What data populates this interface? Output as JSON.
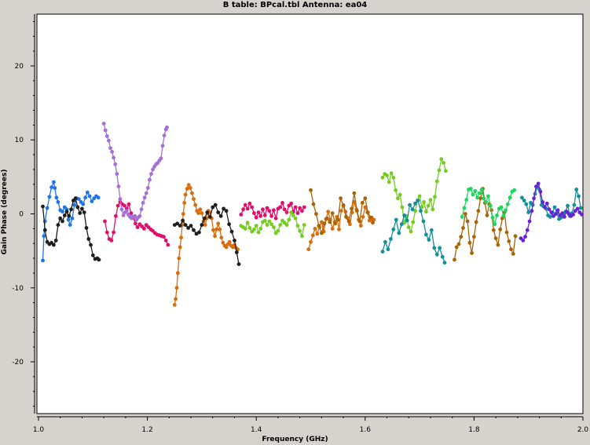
{
  "chart_data": {
    "type": "scatter",
    "title": "B table: BPcal.tbl   Antenna: ea04",
    "xlabel": "Frequency (GHz)",
    "ylabel": "Gain Phase (degrees)",
    "xlim": [
      1.0,
      2.0
    ],
    "ylim": [
      -27,
      27
    ],
    "xticks": [
      1.0,
      1.2,
      1.4,
      1.6,
      1.8,
      2.0
    ],
    "xtick_labels": [
      "1.0",
      "1.2",
      "1.4",
      "1.6",
      "1.8",
      "2.0"
    ],
    "yticks": [
      -20,
      -10,
      0,
      10,
      20
    ],
    "ytick_labels": [
      "-20",
      "-10",
      "0",
      "10",
      "20"
    ],
    "grid": false,
    "legend": "none",
    "series": [
      {
        "color": "#1f74e8",
        "marker": "line-dots",
        "x": [
          1.008,
          1.01,
          1.012,
          1.016,
          1.02,
          1.024,
          1.028,
          1.03,
          1.033,
          1.036,
          1.04,
          1.044,
          1.048,
          1.052,
          1.055,
          1.058,
          1.062,
          1.066,
          1.07,
          1.074,
          1.078,
          1.082,
          1.086,
          1.09,
          1.094,
          1.098,
          1.102,
          1.106,
          1.11
        ],
        "y": [
          -6.3,
          -3.0,
          -1.0,
          0.8,
          2.3,
          3.6,
          4.3,
          3.5,
          2.2,
          1.6,
          0.5,
          0.3,
          0.9,
          0.6,
          -0.8,
          -1.5,
          -0.6,
          1.2,
          2.1,
          2.0,
          1.6,
          1.3,
          2.2,
          2.9,
          2.4,
          1.7,
          2.1,
          2.4,
          2.2
        ]
      },
      {
        "color": "#1e1e1e",
        "marker": "line-dots",
        "x": [
          1.008,
          1.012,
          1.016,
          1.02,
          1.024,
          1.028,
          1.032,
          1.036,
          1.04,
          1.044,
          1.048,
          1.052,
          1.056,
          1.06,
          1.064,
          1.068,
          1.072,
          1.076,
          1.08,
          1.084,
          1.088,
          1.092,
          1.096,
          1.1,
          1.104,
          1.108,
          1.111
        ],
        "y": [
          1.0,
          -2.2,
          -3.8,
          -4.1,
          -3.9,
          -4.2,
          -3.6,
          -1.5,
          -0.6,
          -1.0,
          -0.2,
          0.3,
          -0.3,
          0.6,
          1.8,
          2.1,
          0.9,
          0.1,
          0.7,
          0.2,
          -1.9,
          -3.4,
          -4.2,
          -5.6,
          -6.1,
          -6.0,
          -6.2
        ]
      },
      {
        "color": "#e0106a",
        "marker": "line-dots",
        "x": [
          1.122,
          1.126,
          1.13,
          1.134,
          1.138,
          1.142,
          1.146,
          1.15,
          1.154,
          1.158,
          1.162,
          1.166,
          1.17,
          1.174,
          1.178,
          1.182,
          1.186,
          1.19,
          1.194,
          1.198,
          1.202,
          1.206,
          1.21,
          1.214,
          1.218,
          1.222,
          1.226,
          1.23,
          1.234,
          1.238
        ],
        "y": [
          -1.0,
          -2.5,
          -3.4,
          -3.6,
          -2.5,
          -0.3,
          1.1,
          1.6,
          1.3,
          1.1,
          0.7,
          1.3,
          0.1,
          -0.5,
          -1.3,
          -1.8,
          -1.4,
          -1.7,
          -2.0,
          -1.5,
          -1.8,
          -2.1,
          -2.3,
          -2.6,
          -2.8,
          -2.9,
          -3.0,
          -3.1,
          -3.6,
          -4.2
        ]
      },
      {
        "color": "#a66ed8",
        "marker": "line-dots",
        "x": [
          1.12,
          1.123,
          1.126,
          1.129,
          1.132,
          1.135,
          1.138,
          1.141,
          1.144,
          1.147,
          1.15,
          1.153,
          1.156,
          1.159,
          1.162,
          1.165,
          1.168,
          1.171,
          1.174,
          1.177,
          1.18,
          1.183,
          1.186,
          1.189,
          1.192,
          1.195,
          1.198,
          1.201,
          1.204,
          1.207,
          1.21,
          1.213,
          1.216,
          1.219,
          1.222,
          1.225,
          1.228,
          1.231,
          1.234,
          1.236
        ],
        "y": [
          12.2,
          11.3,
          10.5,
          9.9,
          8.9,
          8.4,
          7.6,
          6.7,
          5.4,
          3.7,
          2.0,
          0.6,
          -0.2,
          0.2,
          0.4,
          -0.1,
          -0.4,
          -0.6,
          -0.4,
          -0.3,
          -0.8,
          -0.5,
          -0.3,
          0.6,
          1.5,
          2.2,
          2.8,
          3.5,
          4.6,
          5.4,
          6.0,
          6.4,
          6.7,
          6.9,
          7.2,
          7.5,
          9.2,
          10.6,
          11.4,
          11.7
        ]
      },
      {
        "color": "#d96c0c",
        "marker": "line-dots",
        "x": [
          1.25,
          1.252,
          1.254,
          1.256,
          1.258,
          1.26,
          1.262,
          1.264,
          1.266,
          1.268,
          1.27,
          1.273,
          1.276,
          1.279,
          1.282,
          1.285,
          1.288,
          1.291,
          1.294,
          1.297,
          1.3,
          1.303,
          1.306,
          1.309,
          1.312,
          1.315,
          1.318,
          1.321,
          1.324,
          1.327,
          1.33,
          1.333,
          1.336,
          1.339,
          1.342,
          1.345,
          1.348,
          1.351,
          1.354,
          1.357,
          1.36,
          1.363,
          1.366
        ],
        "y": [
          -12.3,
          -11.5,
          -10.0,
          -8.0,
          -6.0,
          -4.5,
          -3.2,
          -1.5,
          0.0,
          1.5,
          2.6,
          3.4,
          3.9,
          3.5,
          2.8,
          2.0,
          1.2,
          0.4,
          0.1,
          0.6,
          0.1,
          -1.0,
          -1.5,
          -0.6,
          0.4,
          0.2,
          -0.6,
          -2.2,
          -3.0,
          -2.1,
          -1.3,
          -2.1,
          -3.2,
          -3.9,
          -4.3,
          -4.5,
          -4.1,
          -3.8,
          -4.3,
          -4.5,
          -4.2,
          -4.6,
          -4.8
        ]
      },
      {
        "color": "#1e1e1e",
        "marker": "line-dots",
        "x": [
          1.25,
          1.255,
          1.26,
          1.265,
          1.27,
          1.275,
          1.28,
          1.285,
          1.29,
          1.295,
          1.3,
          1.305,
          1.31,
          1.315,
          1.32,
          1.325,
          1.33,
          1.335,
          1.34,
          1.345,
          1.35,
          1.355,
          1.36,
          1.364,
          1.368
        ],
        "y": [
          -1.5,
          -1.3,
          -1.6,
          -0.9,
          -1.5,
          -1.9,
          -1.6,
          -2.2,
          -2.7,
          -2.5,
          -1.5,
          -0.6,
          0.2,
          -0.4,
          0.9,
          1.2,
          0.2,
          -0.3,
          0.7,
          0.4,
          -1.4,
          -2.4,
          -3.6,
          -5.2,
          -6.8
        ]
      },
      {
        "color": "#e0106a",
        "marker": "line-dots",
        "x": [
          1.372,
          1.376,
          1.38,
          1.384,
          1.388,
          1.392,
          1.396,
          1.4,
          1.404,
          1.408,
          1.412,
          1.416,
          1.42,
          1.424,
          1.428,
          1.432,
          1.436,
          1.44,
          1.444,
          1.448,
          1.452,
          1.456,
          1.46,
          1.464,
          1.468,
          1.472,
          1.476,
          1.48,
          1.484,
          1.488
        ],
        "y": [
          -0.1,
          0.6,
          1.2,
          0.7,
          1.4,
          0.9,
          0.1,
          -0.5,
          0.2,
          -0.3,
          0.6,
          -0.2,
          0.8,
          0.4,
          -0.3,
          0.5,
          -0.6,
          0.7,
          0.9,
          1.5,
          0.6,
          0.2,
          1.1,
          1.4,
          0.3,
          0.9,
          0.1,
          0.8,
          0.4,
          0.9
        ]
      },
      {
        "color": "#77cc22",
        "marker": "line-dots",
        "x": [
          1.372,
          1.376,
          1.38,
          1.384,
          1.388,
          1.392,
          1.396,
          1.4,
          1.404,
          1.408,
          1.412,
          1.416,
          1.42,
          1.424,
          1.428,
          1.432,
          1.436,
          1.44,
          1.444,
          1.448,
          1.452,
          1.456,
          1.46,
          1.464,
          1.468,
          1.472,
          1.476,
          1.48,
          1.484,
          1.488
        ],
        "y": [
          -1.6,
          -1.8,
          -2.0,
          -1.2,
          -1.9,
          -2.4,
          -2.1,
          -1.6,
          -2.5,
          -2.0,
          -1.1,
          -0.9,
          -1.5,
          -1.0,
          -1.4,
          -1.8,
          -2.6,
          -2.3,
          -1.5,
          -0.9,
          -1.2,
          -1.5,
          -0.8,
          0.2,
          -0.2,
          -0.6,
          -1.6,
          -2.3,
          -3.0,
          -1.5
        ]
      },
      {
        "color": "#d96c0c",
        "marker": "line-dots",
        "x": [
          1.496,
          1.5,
          1.504,
          1.508,
          1.512,
          1.516,
          1.52,
          1.524,
          1.528,
          1.532,
          1.536,
          1.54,
          1.544,
          1.548,
          1.552,
          1.556,
          1.56,
          1.564,
          1.568,
          1.572,
          1.576,
          1.58,
          1.584,
          1.588,
          1.592,
          1.596,
          1.6,
          1.604,
          1.608,
          1.612,
          1.616
        ],
        "y": [
          -4.8,
          -3.8,
          -2.9,
          -2.0,
          -2.7,
          -1.8,
          -1.1,
          -2.4,
          -0.7,
          0.3,
          -0.8,
          -2.0,
          -1.1,
          -0.4,
          -2.1,
          0.4,
          1.2,
          0.3,
          -0.6,
          -1.4,
          0.2,
          1.6,
          0.6,
          -0.8,
          -1.6,
          -0.4,
          0.9,
          0.2,
          -0.9,
          -0.5,
          -0.8
        ]
      },
      {
        "color": "#a96406",
        "marker": "line-dots",
        "x": [
          1.5,
          1.505,
          1.51,
          1.515,
          1.52,
          1.525,
          1.53,
          1.535,
          1.54,
          1.545,
          1.55,
          1.555,
          1.56,
          1.565,
          1.57,
          1.575,
          1.58,
          1.585,
          1.59,
          1.595,
          1.6,
          1.605,
          1.61,
          1.614
        ],
        "y": [
          3.2,
          1.3,
          0.0,
          -1.6,
          -2.6,
          -1.3,
          -0.6,
          -1.1,
          0.1,
          -1.3,
          -0.8,
          2.1,
          1.1,
          -0.4,
          -1.0,
          0.7,
          2.8,
          0.4,
          -1.0,
          1.5,
          2.1,
          0.2,
          -0.5,
          -1.2
        ]
      },
      {
        "color": "#77cc22",
        "marker": "line-dots",
        "x": [
          1.632,
          1.636,
          1.64,
          1.644,
          1.648,
          1.652,
          1.656,
          1.66,
          1.664,
          1.668,
          1.672,
          1.676,
          1.68,
          1.684,
          1.688,
          1.692,
          1.696,
          1.7,
          1.704,
          1.708,
          1.712,
          1.716,
          1.72,
          1.724,
          1.728,
          1.732,
          1.736,
          1.74,
          1.744,
          1.748
        ],
        "y": [
          4.9,
          5.4,
          5.2,
          4.3,
          5.5,
          4.9,
          3.2,
          2.1,
          2.6,
          0.9,
          -1.2,
          -0.3,
          -1.8,
          -2.4,
          -1.1,
          0.4,
          1.8,
          2.4,
          0.9,
          1.6,
          0.3,
          1.1,
          1.9,
          0.6,
          2.3,
          4.4,
          5.9,
          7.4,
          6.9,
          5.8
        ]
      },
      {
        "color": "#138f98",
        "marker": "line-dots",
        "x": [
          1.632,
          1.637,
          1.642,
          1.647,
          1.652,
          1.657,
          1.662,
          1.667,
          1.672,
          1.677,
          1.682,
          1.687,
          1.692,
          1.697,
          1.702,
          1.707,
          1.712,
          1.717,
          1.722,
          1.727,
          1.732,
          1.737,
          1.742,
          1.746
        ],
        "y": [
          -5.1,
          -3.8,
          -4.8,
          -3.4,
          -2.1,
          -0.8,
          -2.6,
          -1.4,
          -0.2,
          -0.9,
          1.2,
          0.6,
          1.4,
          1.8,
          0.4,
          -1.0,
          -2.8,
          -3.5,
          -2.2,
          -4.6,
          -5.5,
          -4.6,
          -5.8,
          -6.6
        ]
      },
      {
        "color": "#a96406",
        "marker": "line-dots",
        "x": [
          1.764,
          1.768,
          1.772,
          1.776,
          1.78,
          1.784,
          1.788,
          1.792,
          1.796,
          1.8,
          1.804,
          1.808,
          1.812,
          1.816,
          1.82,
          1.824,
          1.828,
          1.832,
          1.836,
          1.84,
          1.844,
          1.848,
          1.852,
          1.856,
          1.86,
          1.864,
          1.868,
          1.872,
          1.876
        ],
        "y": [
          -6.2,
          -4.5,
          -4.1,
          -3.1,
          -1.9,
          0.0,
          -1.0,
          -3.9,
          -5.3,
          -3.1,
          -1.1,
          0.4,
          2.1,
          3.4,
          1.5,
          -0.2,
          1.3,
          0.5,
          -2.2,
          -3.3,
          -4.2,
          -2.1,
          -0.6,
          0.2,
          -2.5,
          -3.7,
          -4.8,
          -5.4,
          -3.0
        ]
      },
      {
        "color": "#19d85a",
        "marker": "line-dots",
        "x": [
          1.778,
          1.782,
          1.786,
          1.79,
          1.794,
          1.798,
          1.802,
          1.806,
          1.81,
          1.814,
          1.818,
          1.822,
          1.826,
          1.83,
          1.834,
          1.838,
          1.842,
          1.846,
          1.85,
          1.854,
          1.858,
          1.862,
          1.866,
          1.87,
          1.874
        ],
        "y": [
          -0.4,
          0.8,
          1.9,
          3.3,
          3.4,
          2.6,
          3.1,
          2.2,
          2.8,
          3.3,
          2.1,
          1.6,
          2.4,
          1.1,
          -0.5,
          -1.4,
          -0.2,
          0.7,
          0.9,
          -0.3,
          0.5,
          1.3,
          2.2,
          3.0,
          3.2
        ]
      },
      {
        "color": "#138f98",
        "marker": "line-dots",
        "x": [
          1.888,
          1.892,
          1.896,
          1.9,
          1.904,
          1.908,
          1.912,
          1.916,
          1.92,
          1.924,
          1.928,
          1.932,
          1.936,
          1.94,
          1.944,
          1.948,
          1.952,
          1.956,
          1.96,
          1.964,
          1.968,
          1.972,
          1.976,
          1.98,
          1.984,
          1.988,
          1.992,
          1.996
        ],
        "y": [
          2.2,
          1.8,
          1.3,
          0.2,
          1.5,
          1.2,
          2.7,
          3.6,
          3.3,
          1.2,
          1.0,
          0.7,
          -0.2,
          -0.4,
          0.2,
          0.9,
          0.1,
          -0.7,
          -0.5,
          -0.2,
          0.3,
          1.1,
          -0.3,
          0.1,
          1.2,
          3.3,
          2.4,
          0.8
        ]
      },
      {
        "color": "#6a1fd8",
        "marker": "line-dots",
        "x": [
          1.886,
          1.89,
          1.894,
          1.898,
          1.902,
          1.906,
          1.91,
          1.914,
          1.918,
          1.922,
          1.926,
          1.93,
          1.934,
          1.938,
          1.942,
          1.946,
          1.95,
          1.954,
          1.958,
          1.962,
          1.966,
          1.97,
          1.974,
          1.978,
          1.982,
          1.986,
          1.99,
          1.994,
          1.998
        ],
        "y": [
          -3.3,
          -3.6,
          -3.1,
          -2.2,
          -1.0,
          0.4,
          2.1,
          3.7,
          4.1,
          3.0,
          1.6,
          0.9,
          1.4,
          0.6,
          0.2,
          -0.3,
          0.0,
          0.5,
          -0.2,
          0.1,
          -0.4,
          0.3,
          0.0,
          -0.3,
          -0.1,
          0.4,
          0.7,
          0.2,
          -0.1
        ]
      }
    ]
  }
}
